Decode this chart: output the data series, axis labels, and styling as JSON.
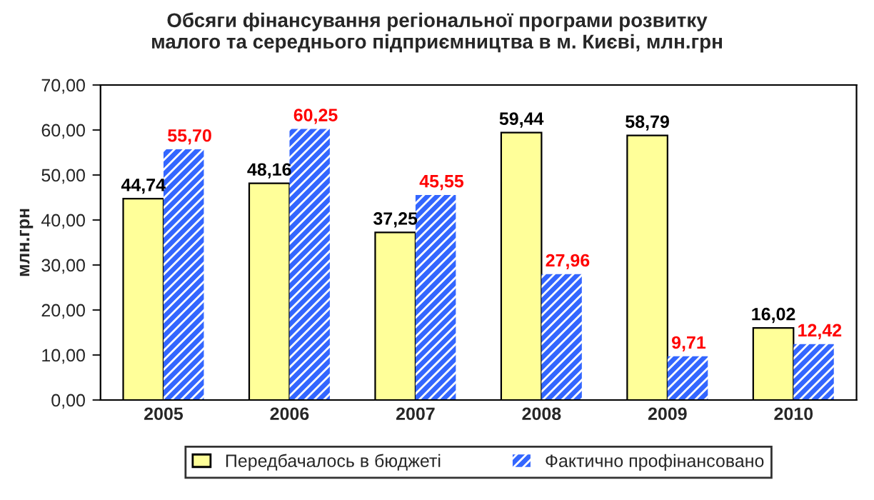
{
  "chart_data": {
    "type": "bar",
    "title": "Обсяги фінансування регіональної програми розвитку\nмалого та середнього підприємництва в м. Києві, млн.грн",
    "ylabel": "млн.грн",
    "categories": [
      "2005",
      "2006",
      "2007",
      "2008",
      "2009",
      "2010"
    ],
    "series": [
      {
        "name": "Передбачалось в бюджеті",
        "color": "#ffff99",
        "values": [
          44.74,
          48.16,
          37.25,
          59.44,
          58.79,
          16.02
        ],
        "value_labels": [
          "44,74",
          "48,16",
          "37,25",
          "59,44",
          "58,79",
          "16,02"
        ]
      },
      {
        "name": "Фактично профінансовано",
        "color": "#3366ff",
        "values": [
          55.7,
          60.25,
          45.55,
          27.96,
          9.71,
          12.42
        ],
        "value_labels": [
          "55,70",
          "60,25",
          "45,55",
          "27,96",
          "9,71",
          "12,42"
        ]
      }
    ],
    "ylim": [
      0,
      70
    ],
    "yticks": [
      {
        "value": 0,
        "label": "0,00"
      },
      {
        "value": 10,
        "label": "10,00"
      },
      {
        "value": 20,
        "label": "20,00"
      },
      {
        "value": 30,
        "label": "30,00"
      },
      {
        "value": 40,
        "label": "40,00"
      },
      {
        "value": 50,
        "label": "50,00"
      },
      {
        "value": 60,
        "label": "60,00"
      },
      {
        "value": 70,
        "label": "70,00"
      }
    ],
    "grid": false,
    "legend": "bottom"
  }
}
